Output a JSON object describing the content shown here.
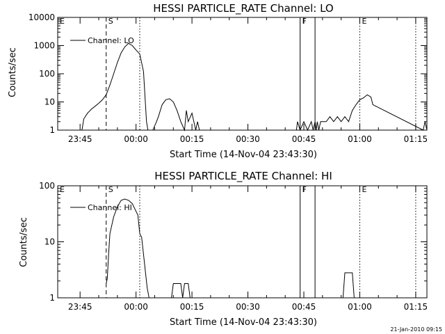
{
  "footer": {
    "timestamp": "21-Jan-2010 09:15"
  },
  "chart_data": [
    {
      "type": "line",
      "title": "HESSI PARTICLE_RATE Channel: LO",
      "xlabel": "Start Time (14-Nov-04 23:43:30)",
      "ylabel": "Counts/sec",
      "yscale": "log",
      "ylim": [
        1,
        10000
      ],
      "xlim": [
        -6,
        93
      ],
      "x_units": "minutes after 23:45 on 14-Nov-04",
      "x_ticks": [
        0,
        15,
        30,
        45,
        60,
        75,
        90
      ],
      "x_tick_labels": [
        "23:45",
        "00:00",
        "00:15",
        "00:30",
        "00:45",
        "01:00",
        "01:15"
      ],
      "y_ticks": [
        1,
        10,
        100,
        1000,
        10000
      ],
      "y_tick_labels": [
        "1",
        "10",
        "100",
        "1000",
        "10000"
      ],
      "series": [
        {
          "name": "Channel: LO",
          "x": [
            0.5,
            1,
            2,
            3,
            4,
            5,
            6,
            7,
            8,
            9,
            10,
            11,
            12,
            13,
            14,
            15,
            16,
            17,
            17.5,
            17.8,
            18.2,
            19.5,
            20.5,
            21,
            22,
            23,
            24,
            25,
            26,
            27,
            28,
            28.5,
            29,
            30,
            31,
            31.5,
            32,
            33,
            33.5,
            34,
            35,
            58,
            58.3,
            59,
            60,
            61,
            62,
            62.5,
            63,
            63.3,
            63.6,
            64,
            64.5,
            65,
            66,
            67,
            68,
            69,
            70,
            71,
            72,
            73,
            74,
            75,
            76,
            77,
            78,
            78.5,
            92,
            92.5,
            93
          ],
          "y": [
            1,
            2.5,
            4,
            5.5,
            7,
            9,
            12,
            18,
            40,
            100,
            250,
            550,
            900,
            1200,
            1000,
            700,
            500,
            120,
            10,
            2,
            1,
            1,
            2,
            3,
            8,
            12,
            13,
            10,
            5,
            2,
            1,
            5,
            2,
            4,
            1,
            2,
            1,
            1,
            1,
            1,
            1,
            1,
            2,
            1,
            2,
            1,
            2,
            1,
            2,
            1,
            2,
            1,
            2,
            2,
            2,
            3,
            2,
            3,
            2,
            3,
            2,
            5,
            8,
            12,
            14,
            18,
            15,
            8,
            1,
            2,
            1
          ]
        }
      ],
      "markers": [
        {
          "label": "E",
          "x": -6,
          "style": "dotted"
        },
        {
          "label": "S",
          "x": 7,
          "style": "dashed"
        },
        {
          "label": "",
          "x": 16,
          "style": "dotted"
        },
        {
          "label": "F",
          "x": 59,
          "style": "solid"
        },
        {
          "label": "",
          "x": 63,
          "style": "solid"
        },
        {
          "label": "E",
          "x": 75,
          "style": "dotted"
        },
        {
          "label": "",
          "x": 90,
          "style": "dotted"
        }
      ]
    },
    {
      "type": "line",
      "title": "HESSI PARTICLE_RATE Channel: HI",
      "xlabel": "Start Time (14-Nov-04 23:43:30)",
      "ylabel": "Counts/sec",
      "yscale": "log",
      "ylim": [
        1,
        100
      ],
      "xlim": [
        -6,
        93
      ],
      "x_units": "minutes after 23:45 on 14-Nov-04",
      "x_ticks": [
        0,
        15,
        30,
        45,
        60,
        75,
        90
      ],
      "x_tick_labels": [
        "23:45",
        "00:00",
        "00:15",
        "00:30",
        "00:45",
        "01:00",
        "01:15"
      ],
      "y_ticks": [
        1,
        10,
        100
      ],
      "y_tick_labels": [
        "1",
        "10",
        "100"
      ],
      "series": [
        {
          "name": "Channel: HI",
          "x": [
            7,
            7.3,
            7.7,
            8,
            9,
            10,
            11,
            12,
            13,
            14,
            15,
            15.5,
            16,
            16.5,
            17,
            17.5,
            18,
            18.5,
            24.5,
            25,
            26,
            27,
            27.5,
            28,
            28.5,
            29,
            29.5,
            70.5,
            71,
            72,
            73,
            73.5
          ],
          "y": [
            1.8,
            2.2,
            7,
            14,
            28,
            42,
            55,
            58,
            55,
            48,
            35,
            30,
            14,
            12,
            6,
            3,
            1.5,
            1,
            1,
            1.8,
            1.8,
            1.8,
            1,
            1.8,
            1.8,
            1.8,
            1,
            1,
            2.8,
            2.8,
            2.8,
            1
          ]
        }
      ],
      "markers": [
        {
          "label": "E",
          "x": -6,
          "style": "dotted"
        },
        {
          "label": "S",
          "x": 7,
          "style": "dashed"
        },
        {
          "label": "",
          "x": 16,
          "style": "dotted"
        },
        {
          "label": "F",
          "x": 59,
          "style": "solid"
        },
        {
          "label": "",
          "x": 63,
          "style": "solid"
        },
        {
          "label": "E",
          "x": 75,
          "style": "dotted"
        },
        {
          "label": "",
          "x": 90,
          "style": "dotted"
        }
      ]
    }
  ]
}
